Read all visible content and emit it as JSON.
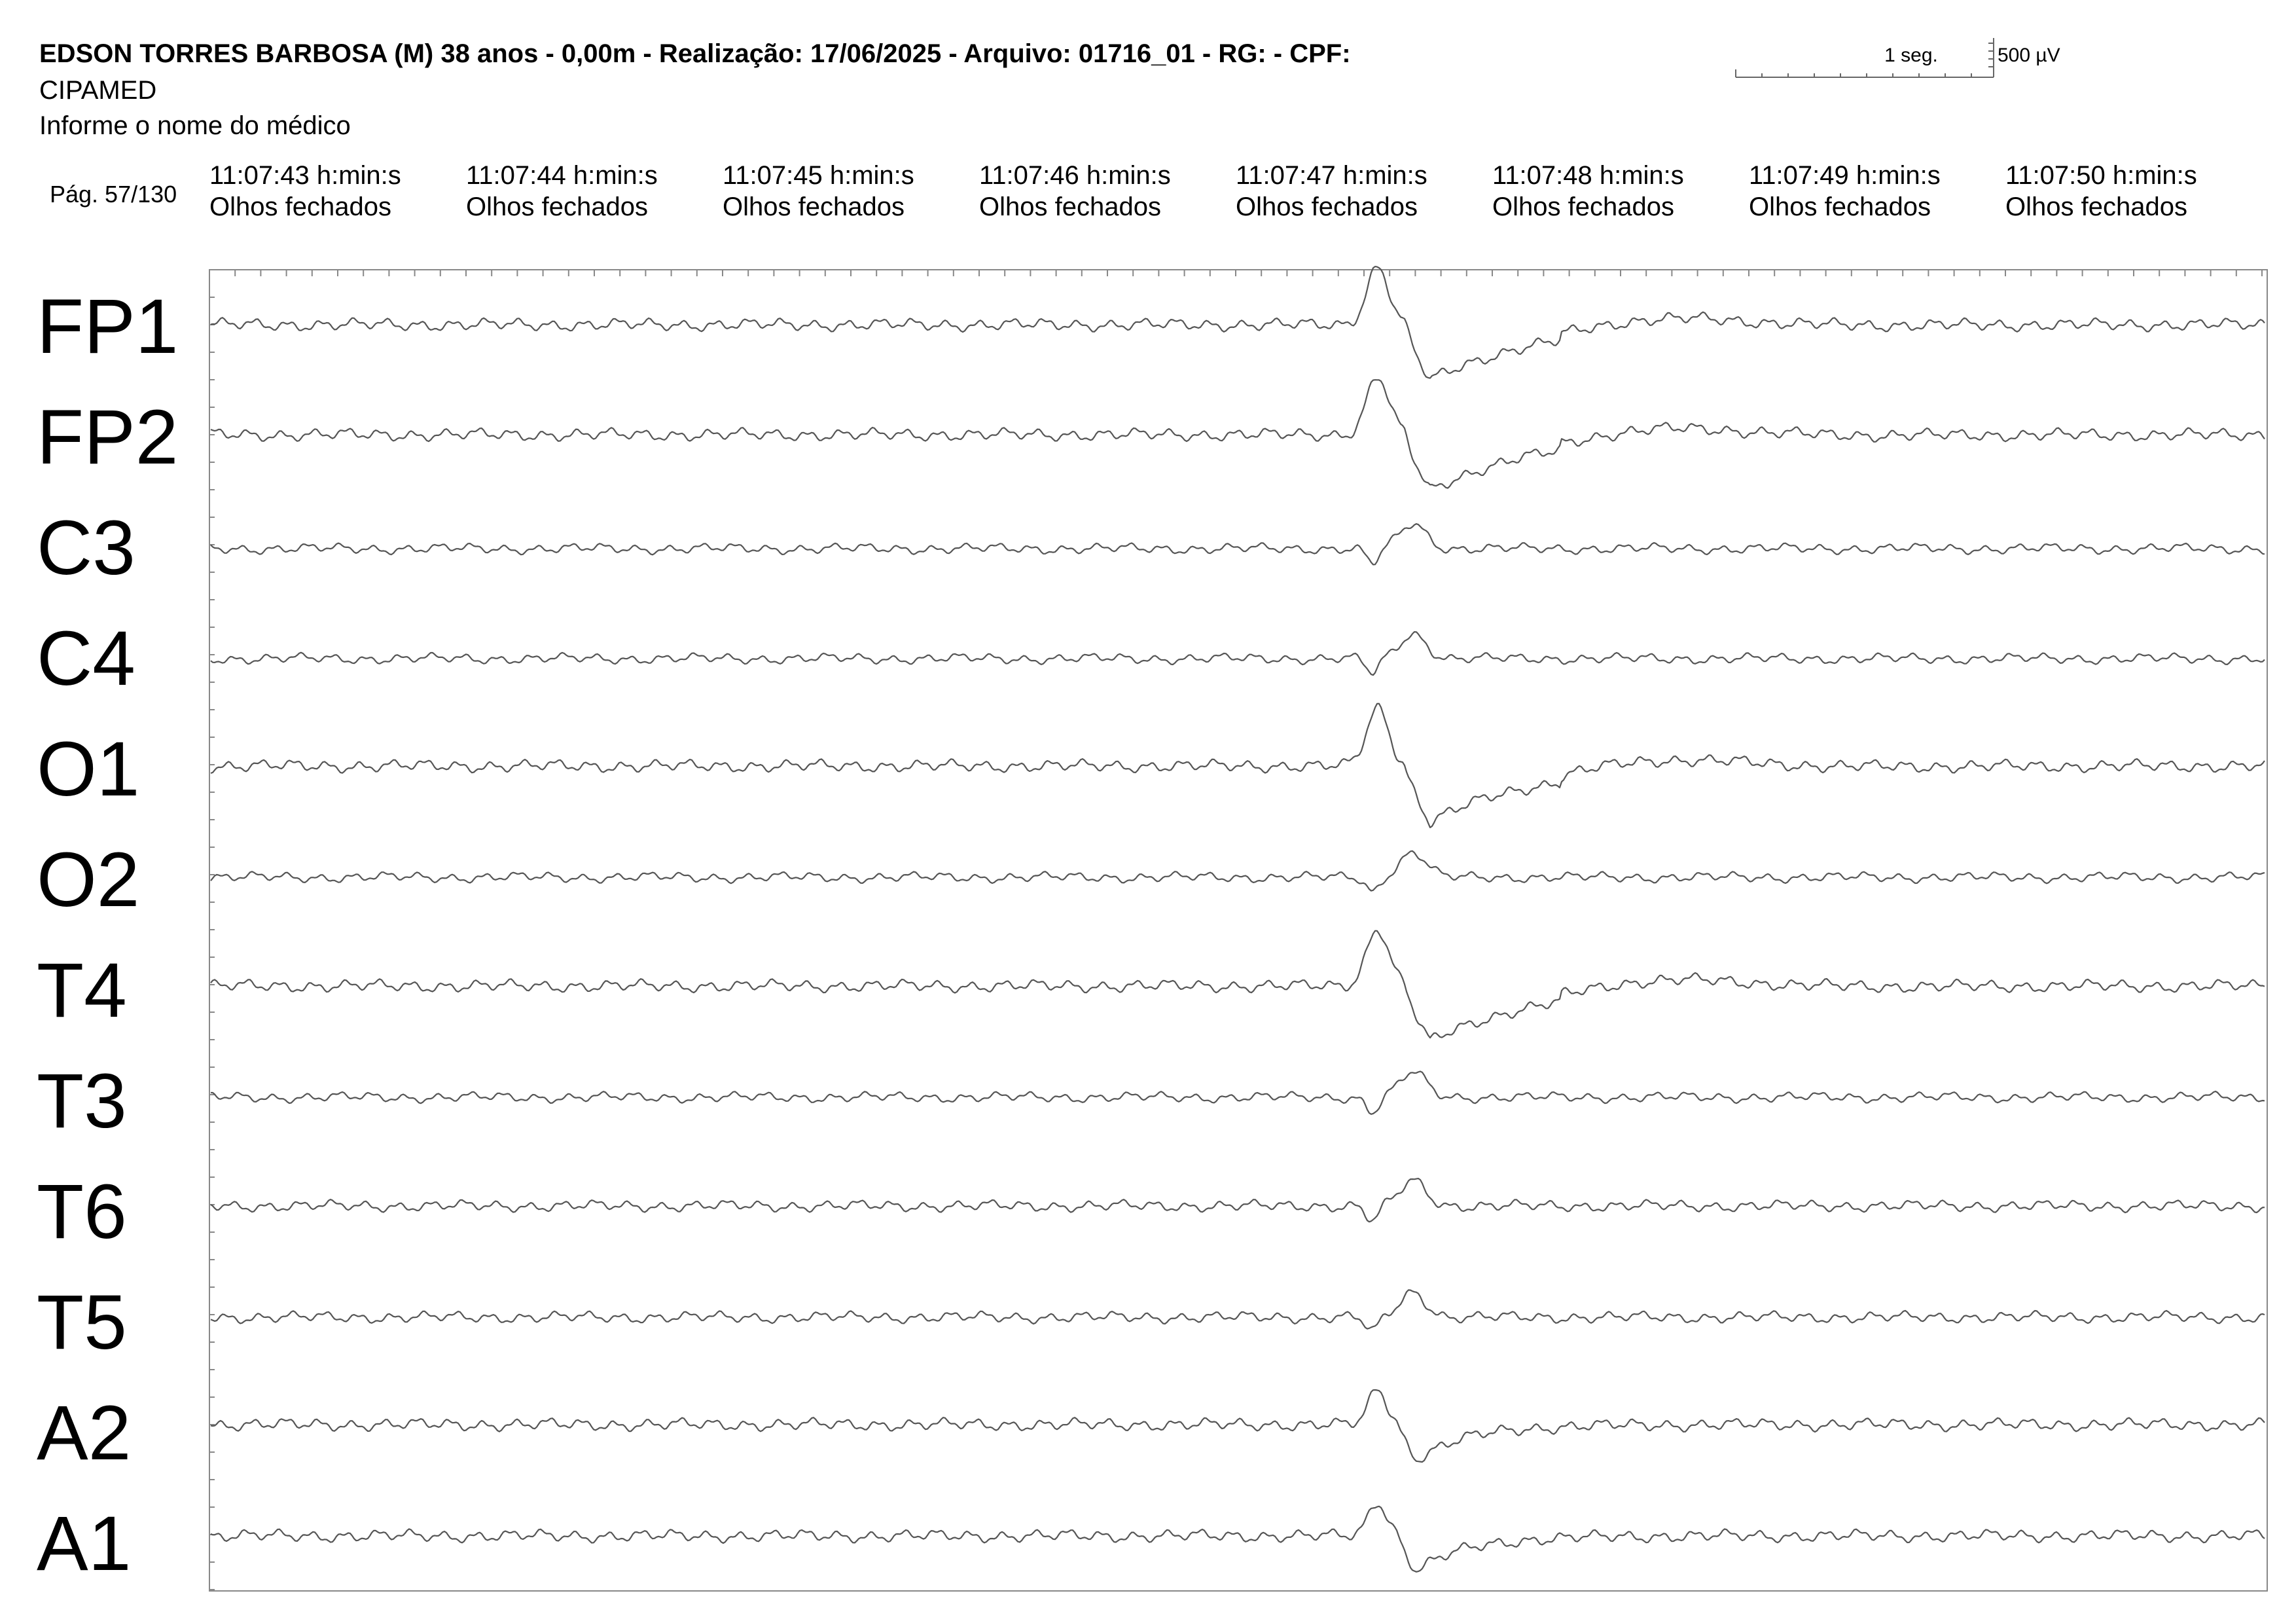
{
  "header": {
    "title": "EDSON TORRES BARBOSA (M) 38 anos - 0,00m - Realização: 17/06/2025 - Arquivo: 01716_01 - RG:  - CPF:",
    "clinic": "CIPAMED",
    "doctor": "Informe o nome do médico",
    "page": "Pág. 57/130"
  },
  "scale": {
    "time": "1 seg.",
    "amplitude": "500 µV"
  },
  "timestamps": [
    {
      "time": "11:07:43 h:min:s",
      "state": "Olhos fechados"
    },
    {
      "time": "11:07:44 h:min:s",
      "state": "Olhos fechados"
    },
    {
      "time": "11:07:45 h:min:s",
      "state": "Olhos fechados"
    },
    {
      "time": "11:07:46 h:min:s",
      "state": "Olhos fechados"
    },
    {
      "time": "11:07:47 h:min:s",
      "state": "Olhos fechados"
    },
    {
      "time": "11:07:48 h:min:s",
      "state": "Olhos fechados"
    },
    {
      "time": "11:07:49 h:min:s",
      "state": "Olhos fechados"
    },
    {
      "time": "11:07:50 h:min:s",
      "state": "Olhos fechados"
    }
  ],
  "channels": [
    "FP1",
    "FP2",
    "C3",
    "C4",
    "O1",
    "O2",
    "T4",
    "T3",
    "T6",
    "T5",
    "A2",
    "A1"
  ],
  "colors": {
    "trace": "#555555",
    "frame": "#888888"
  }
}
